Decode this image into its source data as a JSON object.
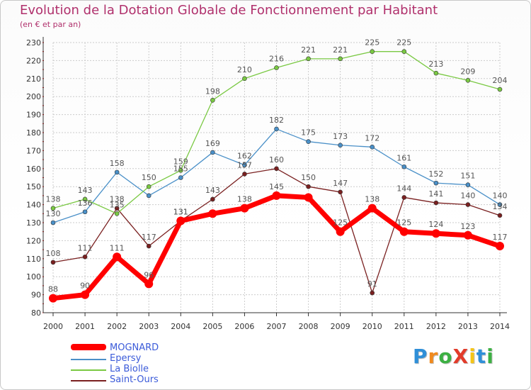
{
  "title": "Evolution de la Dotation Globale de Fonctionnement par Habitant",
  "subtitle": "(en € et par an)",
  "logo": {
    "letters": [
      "P",
      "r",
      "o",
      "X",
      "i",
      "t",
      "i"
    ],
    "colors": [
      "#2f8fd8",
      "#f08a1e",
      "#3cb043",
      "#e23b2a",
      "#f5c518",
      "#2f8fd8",
      "#3cb043"
    ]
  },
  "chart_data": {
    "type": "line",
    "x": [
      "2000",
      "2001",
      "2002",
      "2003",
      "2004",
      "2005",
      "2006",
      "2007",
      "2008",
      "2009",
      "2010",
      "2011",
      "2012",
      "2013",
      "2014"
    ],
    "ylim": [
      80,
      230
    ],
    "yticks": [
      80,
      90,
      100,
      110,
      120,
      130,
      140,
      150,
      160,
      170,
      180,
      190,
      200,
      210,
      220,
      230
    ],
    "grid": true,
    "legend_position": "bottom-left",
    "series": [
      {
        "name": "MOGNARD",
        "color": "#ff0000",
        "values": [
          88,
          90,
          111,
          96,
          131,
          135,
          138,
          145,
          144,
          125,
          138,
          125,
          124,
          123,
          117
        ],
        "labels": [
          "88",
          "90",
          "111",
          "96",
          "131",
          "",
          "138",
          "145",
          "",
          "125",
          "138",
          "125",
          "124",
          "123",
          "117"
        ]
      },
      {
        "name": "Epersy",
        "color": "#4a90c8",
        "values": [
          130,
          136,
          158,
          145,
          155,
          169,
          162,
          182,
          175,
          173,
          172,
          161,
          152,
          151,
          140
        ],
        "labels": [
          "130",
          "136",
          "158",
          "",
          "155",
          "169",
          "162",
          "182",
          "175",
          "173",
          "172",
          "161",
          "152",
          "151",
          "140"
        ]
      },
      {
        "name": "La Biolle",
        "color": "#7ac943",
        "values": [
          138,
          143,
          135,
          150,
          159,
          198,
          210,
          216,
          221,
          221,
          225,
          225,
          213,
          209,
          204
        ],
        "labels": [
          "138",
          "143",
          "135",
          "150",
          "159",
          "198",
          "210",
          "216",
          "221",
          "221",
          "225",
          "225",
          "213",
          "209",
          "204"
        ]
      },
      {
        "name": "Saint-Ours",
        "color": "#7a2020",
        "values": [
          108,
          111,
          138,
          117,
          131,
          143,
          157,
          160,
          150,
          147,
          91,
          144,
          141,
          140,
          134
        ],
        "labels": [
          "108",
          "111",
          "138",
          "117",
          "131",
          "143",
          "157",
          "160",
          "150",
          "147",
          "91",
          "144",
          "141",
          "140",
          "134"
        ]
      }
    ]
  }
}
